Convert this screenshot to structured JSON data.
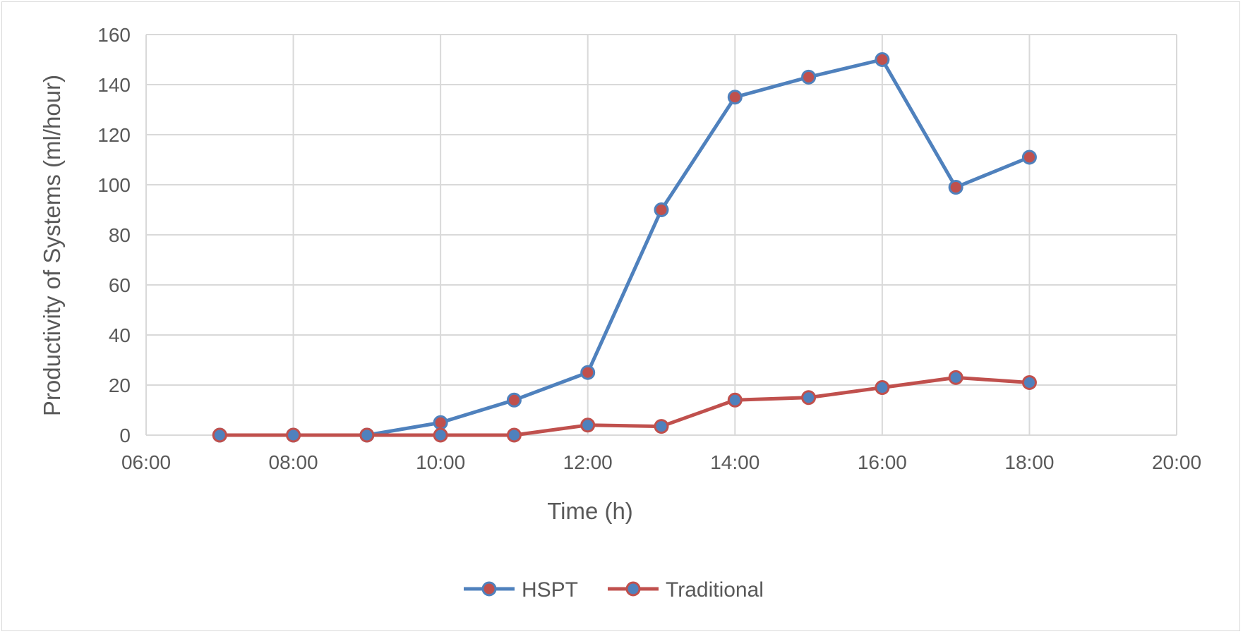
{
  "chart_data": {
    "type": "line",
    "title": "",
    "xlabel": "Time (h)",
    "ylabel": "Productivity of Systems (ml/hour)",
    "xlim": [
      "06:00",
      "20:00"
    ],
    "ylim": [
      0,
      160
    ],
    "x_ticks": [
      "06:00",
      "08:00",
      "10:00",
      "12:00",
      "14:00",
      "16:00",
      "18:00",
      "20:00"
    ],
    "y_ticks": [
      0,
      20,
      40,
      60,
      80,
      100,
      120,
      140,
      160
    ],
    "grid": true,
    "legend_position": "bottom",
    "x": [
      "07:00",
      "08:00",
      "09:00",
      "10:00",
      "11:00",
      "12:00",
      "13:00",
      "14:00",
      "15:00",
      "16:00",
      "17:00",
      "18:00"
    ],
    "series": [
      {
        "name": "HSPT",
        "line_color": "#4f81bd",
        "marker_color": "#c0504d",
        "values": [
          0,
          0,
          0,
          5,
          14,
          25,
          90,
          135,
          143,
          150,
          99,
          111
        ]
      },
      {
        "name": "Traditional",
        "line_color": "#c0504d",
        "marker_color": "#4f81bd",
        "values": [
          0,
          0,
          0,
          0,
          0,
          4,
          3.5,
          14,
          15,
          19,
          23,
          21
        ]
      }
    ]
  }
}
